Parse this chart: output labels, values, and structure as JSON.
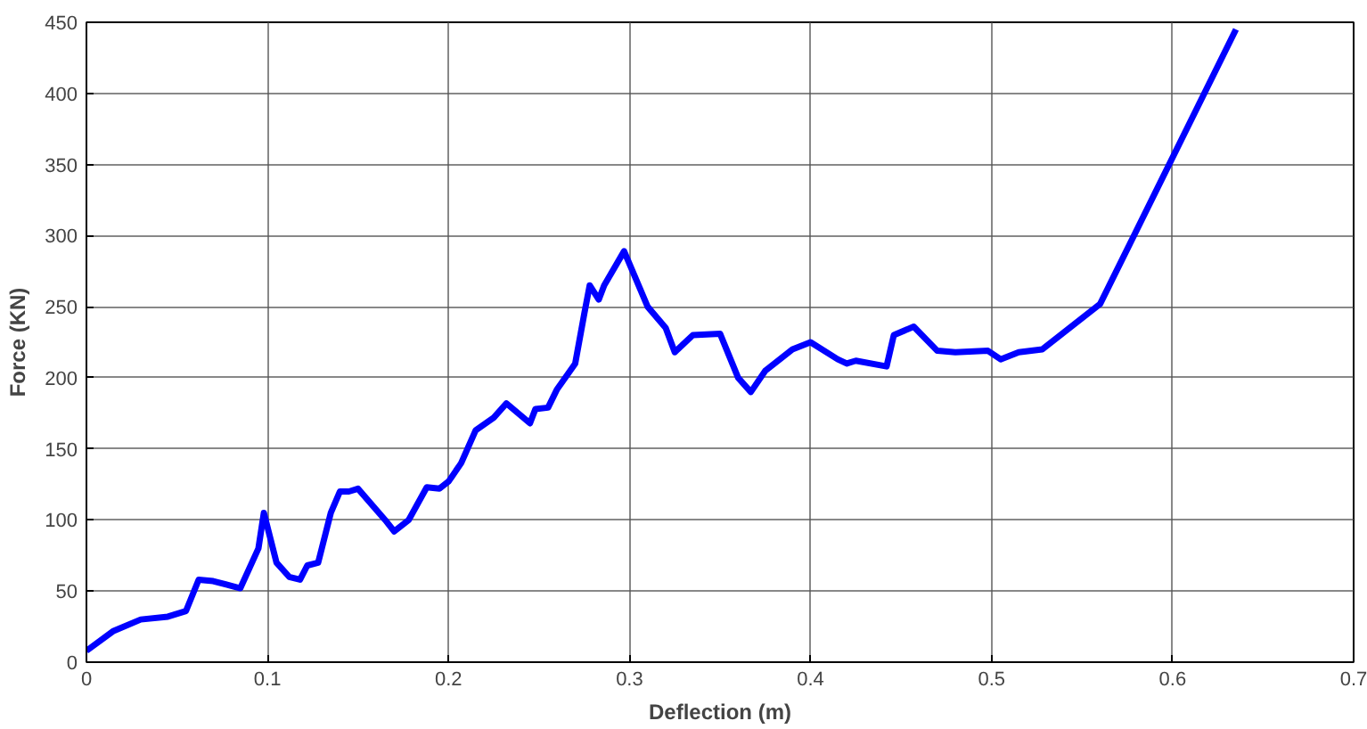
{
  "chart_data": {
    "type": "line",
    "xlabel": "Deflection (m)",
    "ylabel": "Force (KN)",
    "x": [
      0,
      0.015,
      0.03,
      0.045,
      0.055,
      0.062,
      0.07,
      0.085,
      0.095,
      0.098,
      0.105,
      0.112,
      0.118,
      0.122,
      0.128,
      0.135,
      0.14,
      0.145,
      0.15,
      0.165,
      0.17,
      0.178,
      0.188,
      0.195,
      0.2,
      0.207,
      0.215,
      0.225,
      0.232,
      0.245,
      0.248,
      0.255,
      0.26,
      0.27,
      0.275,
      0.278,
      0.283,
      0.286,
      0.297,
      0.305,
      0.31,
      0.32,
      0.325,
      0.335,
      0.35,
      0.36,
      0.367,
      0.375,
      0.39,
      0.4,
      0.415,
      0.42,
      0.425,
      0.442,
      0.446,
      0.457,
      0.47,
      0.48,
      0.498,
      0.505,
      0.515,
      0.528,
      0.56,
      0.635
    ],
    "series": [
      {
        "color": "#0000ff",
        "values": [
          8,
          22,
          30,
          32,
          36,
          58,
          57,
          52,
          80,
          105,
          70,
          60,
          58,
          68,
          70,
          105,
          120,
          120,
          122,
          100,
          92,
          100,
          123,
          122,
          127,
          140,
          163,
          172,
          182,
          168,
          178,
          179,
          192,
          210,
          245,
          265,
          255,
          265,
          289,
          265,
          250,
          235,
          218,
          230,
          231,
          200,
          190,
          205,
          220,
          225,
          213,
          210,
          212,
          208,
          230,
          236,
          219,
          218,
          219,
          213,
          218,
          220,
          252,
          445
        ]
      }
    ],
    "xlim": [
      0,
      0.7
    ],
    "ylim": [
      0,
      450
    ],
    "xticks": [
      0,
      0.1,
      0.2,
      0.3,
      0.4,
      0.5,
      0.6,
      0.7
    ],
    "yticks": [
      0,
      50,
      100,
      150,
      200,
      250,
      300,
      350,
      400,
      450
    ],
    "grid": true,
    "line_style": "solid",
    "marker": "none"
  }
}
